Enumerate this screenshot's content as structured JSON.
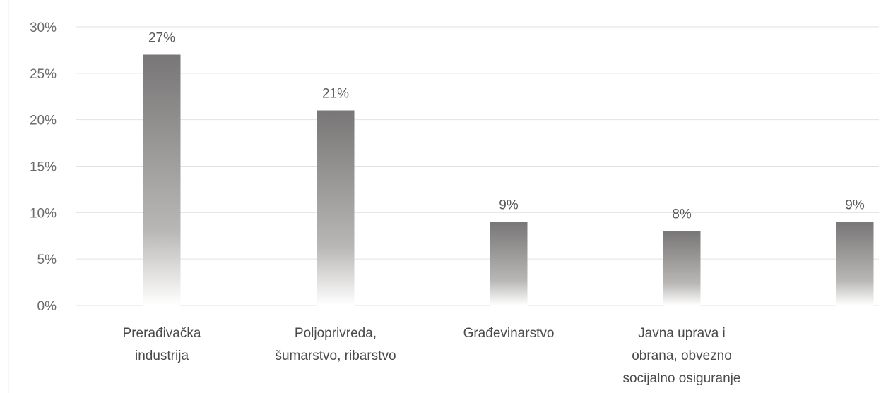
{
  "chart_data": {
    "type": "bar",
    "title": "",
    "xlabel": "",
    "ylabel": "",
    "ylim": [
      0,
      30
    ],
    "y_ticks": [
      0,
      5,
      10,
      15,
      20,
      25,
      30
    ],
    "y_tick_format": "percent",
    "grid": true,
    "legend": "none",
    "categories": [
      [
        "Prerađivačka",
        "industrija"
      ],
      [
        "Poljoprivreda,",
        "šumarstvo, ribarstvo"
      ],
      [
        "Građevinarstvo"
      ],
      [
        "Javna uprava i",
        "obrana, obvezno",
        "socijalno osiguranje"
      ],
      []
    ],
    "values": [
      27,
      21,
      9,
      8,
      9
    ],
    "data_labels": [
      "27%",
      "21%",
      "9%",
      "8%",
      "9%"
    ],
    "colors": {
      "bar_top": "#787676",
      "bar_bottom": "#ffffff",
      "grid": "#e2e2e2",
      "text": "#6b6b6b"
    }
  }
}
